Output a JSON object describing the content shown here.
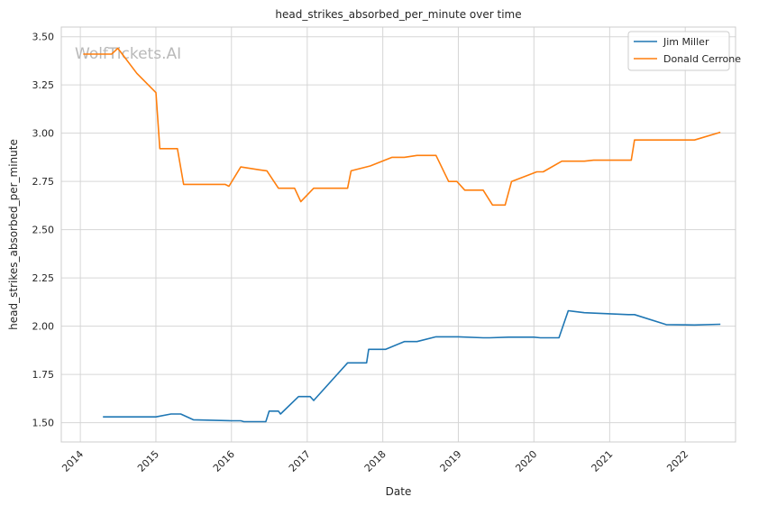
{
  "chart_data": {
    "type": "line",
    "title": "head_strikes_absorbed_per_minute over time",
    "xlabel": "Date",
    "ylabel": "head_strikes_absorbed_per_minute",
    "xlim": [
      "2013-10-01",
      "2022-09-01"
    ],
    "ylim": [
      1.4,
      3.55
    ],
    "x_ticks": [
      "2014",
      "2015",
      "2016",
      "2017",
      "2018",
      "2019",
      "2020",
      "2021",
      "2022"
    ],
    "y_ticks": [
      "1.50",
      "1.75",
      "2.00",
      "2.25",
      "2.50",
      "2.75",
      "3.00",
      "3.25",
      "3.50"
    ],
    "grid": true,
    "legend_position": "top-right",
    "watermark": "WolfTickets.AI",
    "series": [
      {
        "name": "Jim Miller",
        "color": "#1f77b4",
        "points": [
          [
            "2014-04-20",
            1.53
          ],
          [
            "2015-01-01",
            1.53
          ],
          [
            "2015-03-15",
            1.545
          ],
          [
            "2015-05-01",
            1.545
          ],
          [
            "2015-07-01",
            1.515
          ],
          [
            "2016-01-01",
            1.51
          ],
          [
            "2016-02-15",
            1.51
          ],
          [
            "2016-03-01",
            1.505
          ],
          [
            "2016-06-15",
            1.505
          ],
          [
            "2016-07-01",
            1.56
          ],
          [
            "2016-08-15",
            1.56
          ],
          [
            "2016-08-25",
            1.545
          ],
          [
            "2016-11-20",
            1.635
          ],
          [
            "2017-01-15",
            1.635
          ],
          [
            "2017-02-01",
            1.615
          ],
          [
            "2017-07-15",
            1.81
          ],
          [
            "2017-10-01",
            1.81
          ],
          [
            "2017-10-15",
            1.81
          ],
          [
            "2017-10-25",
            1.88
          ],
          [
            "2018-01-15",
            1.88
          ],
          [
            "2018-04-15",
            1.92
          ],
          [
            "2018-06-15",
            1.92
          ],
          [
            "2018-09-15",
            1.945
          ],
          [
            "2019-01-01",
            1.945
          ],
          [
            "2019-05-01",
            1.94
          ],
          [
            "2019-06-01",
            1.94
          ],
          [
            "2019-09-01",
            1.943
          ],
          [
            "2020-01-01",
            1.943
          ],
          [
            "2020-02-01",
            1.94
          ],
          [
            "2020-05-01",
            1.94
          ],
          [
            "2020-06-15",
            2.08
          ],
          [
            "2020-09-01",
            2.07
          ],
          [
            "2021-04-01",
            2.06
          ],
          [
            "2021-05-01",
            2.06
          ],
          [
            "2021-10-01",
            2.008
          ],
          [
            "2022-02-15",
            2.006
          ],
          [
            "2022-06-20",
            2.01
          ]
        ]
      },
      {
        "name": "Donald Cerrone",
        "color": "#ff7f0e",
        "points": [
          [
            "2014-01-15",
            3.41
          ],
          [
            "2014-06-01",
            3.41
          ],
          [
            "2014-07-01",
            3.44
          ],
          [
            "2014-10-01",
            3.31
          ],
          [
            "2015-01-01",
            3.21
          ],
          [
            "2015-01-20",
            2.92
          ],
          [
            "2015-04-15",
            2.92
          ],
          [
            "2015-05-15",
            2.735
          ],
          [
            "2015-12-01",
            2.735
          ],
          [
            "2015-12-20",
            2.725
          ],
          [
            "2016-02-15",
            2.825
          ],
          [
            "2016-05-15",
            2.81
          ],
          [
            "2016-06-20",
            2.805
          ],
          [
            "2016-08-15",
            2.715
          ],
          [
            "2016-11-01",
            2.715
          ],
          [
            "2016-12-01",
            2.645
          ],
          [
            "2017-02-01",
            2.715
          ],
          [
            "2017-07-15",
            2.715
          ],
          [
            "2017-08-01",
            2.805
          ],
          [
            "2017-11-01",
            2.83
          ],
          [
            "2018-02-15",
            2.875
          ],
          [
            "2018-04-15",
            2.875
          ],
          [
            "2018-06-15",
            2.885
          ],
          [
            "2018-09-15",
            2.885
          ],
          [
            "2018-11-15",
            2.75
          ],
          [
            "2018-12-25",
            2.75
          ],
          [
            "2019-02-01",
            2.705
          ],
          [
            "2019-05-01",
            2.705
          ],
          [
            "2019-06-15",
            2.628
          ],
          [
            "2019-08-15",
            2.628
          ],
          [
            "2019-09-15",
            2.75
          ],
          [
            "2020-01-15",
            2.8
          ],
          [
            "2020-02-15",
            2.8
          ],
          [
            "2020-05-15",
            2.855
          ],
          [
            "2020-09-01",
            2.855
          ],
          [
            "2020-10-15",
            2.86
          ],
          [
            "2021-04-15",
            2.86
          ],
          [
            "2021-05-01",
            2.965
          ],
          [
            "2022-02-15",
            2.965
          ],
          [
            "2022-06-20",
            3.005
          ]
        ]
      }
    ]
  }
}
